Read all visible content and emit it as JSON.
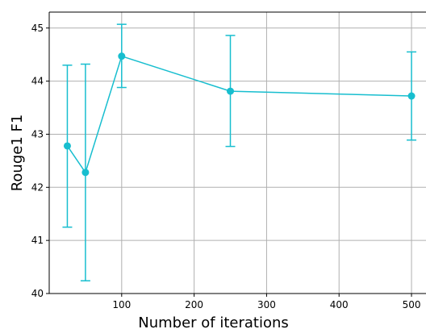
{
  "chart_data": {
    "type": "line",
    "xlabel": "Number of iterations",
    "ylabel": "Rouge1 F1",
    "xlim": [
      0,
      520
    ],
    "ylim": [
      40,
      45.3
    ],
    "xticks": [
      100,
      200,
      300,
      400,
      500
    ],
    "yticks": [
      40,
      41,
      42,
      43,
      44,
      45
    ],
    "grid": true,
    "color": "#17BECF",
    "series": [
      {
        "x": [
          25,
          50,
          100,
          250,
          500
        ],
        "y": [
          42.78,
          42.28,
          44.47,
          43.81,
          43.72
        ],
        "err_low": [
          41.25,
          40.24,
          43.88,
          42.77,
          42.89
        ],
        "err_high": [
          44.3,
          44.32,
          45.07,
          44.86,
          44.55
        ]
      }
    ]
  }
}
